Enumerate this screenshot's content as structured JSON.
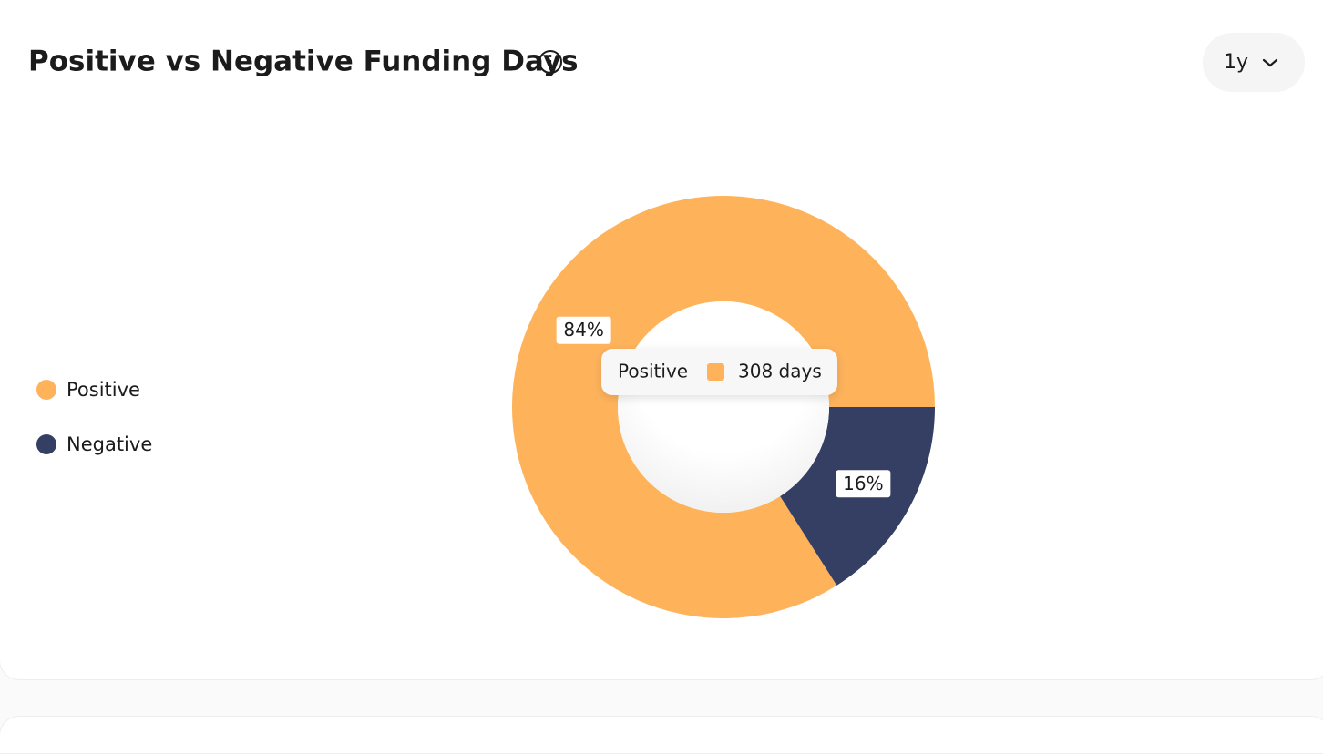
{
  "chart_data": {
    "type": "pie",
    "title": "Positive vs Negative Funding Days",
    "period": "1y",
    "categories": [
      "Positive",
      "Negative"
    ],
    "values": [
      84,
      16
    ],
    "value_labels": [
      "84%",
      "16%"
    ],
    "colors": [
      "#feb35b",
      "#353f63"
    ],
    "tooltip": "308 days"
  }
}
